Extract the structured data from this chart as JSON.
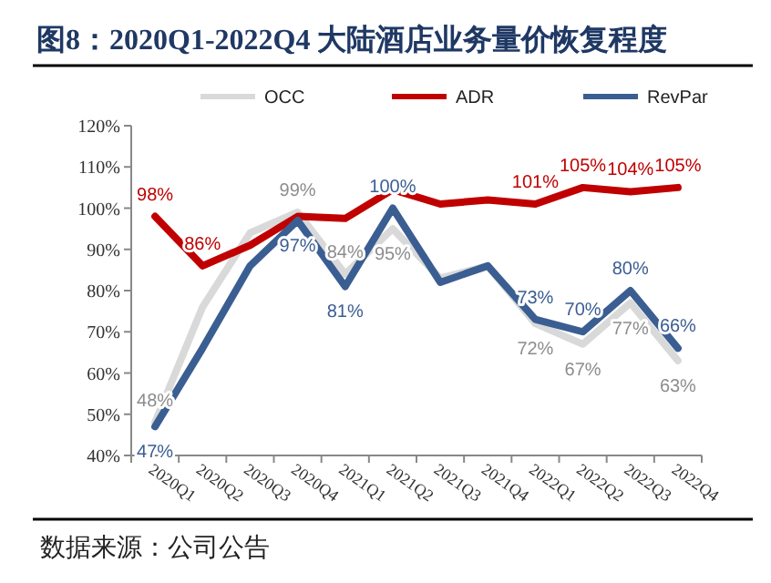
{
  "chart_data": {
    "type": "line",
    "title": "图8：2020Q1-2022Q4 大陆酒店业务量价恢复程度",
    "annotations": [
      "数据来源：公司公告"
    ],
    "categories": [
      "2020Q1",
      "2020Q2",
      "2020Q3",
      "2020Q4",
      "2021Q1",
      "2021Q2",
      "2021Q3",
      "2021Q4",
      "2022Q1",
      "2022Q2",
      "2022Q3",
      "2022Q4"
    ],
    "series": [
      {
        "name": "OCC",
        "color": "#d9d9d9",
        "values": [
          48,
          76,
          94,
          99,
          84,
          95,
          83,
          86,
          72,
          67,
          77,
          63
        ],
        "value_labels": [
          "48%",
          null,
          null,
          "99%",
          "84%",
          "95%",
          null,
          null,
          "72%",
          "67%",
          "77%",
          "63%"
        ]
      },
      {
        "name": "ADR",
        "color": "#c00000",
        "values": [
          98,
          86,
          91,
          98,
          97.5,
          104.5,
          101,
          102,
          101,
          105,
          104,
          105
        ],
        "value_labels": [
          "98%",
          "86%",
          null,
          null,
          null,
          null,
          null,
          null,
          "101%",
          "105%",
          "104%",
          "105%"
        ]
      },
      {
        "name": "RevPar",
        "color": "#3b5e92",
        "values": [
          47,
          66,
          86,
          97,
          81,
          100,
          82,
          86,
          73,
          70,
          80,
          66
        ],
        "value_labels": [
          "47%",
          null,
          null,
          "97%",
          "81%",
          "100%",
          null,
          null,
          "73%",
          "70%",
          "80%",
          "66%"
        ]
      }
    ],
    "ylim": [
      40,
      120
    ],
    "yticks": [
      {
        "value": 40,
        "label": "40%"
      },
      {
        "value": 50,
        "label": "50%"
      },
      {
        "value": 60,
        "label": "60%"
      },
      {
        "value": 70,
        "label": "70%"
      },
      {
        "value": 80,
        "label": "80%"
      },
      {
        "value": 90,
        "label": "90%"
      },
      {
        "value": 100,
        "label": "100%"
      },
      {
        "value": 110,
        "label": "110%"
      },
      {
        "value": 120,
        "label": "120%"
      }
    ],
    "legend": "top",
    "grid": false,
    "marker": "none",
    "line_style": "solid"
  }
}
